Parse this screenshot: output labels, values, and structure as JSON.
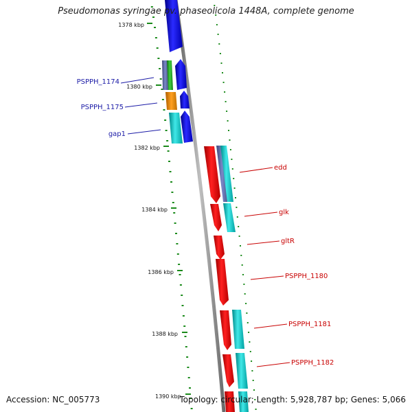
{
  "title": "Pseudomonas syringae pv. phaseolicola 1448A, complete genome",
  "accession": "Accession: NC_005773",
  "stats": "Topology: circular; Length: 5,928,787 bp; Genes: 5,066",
  "kbp_labels": [
    "1378 kbp",
    "1380 kbp",
    "1382 kbp",
    "1384 kbp",
    "1386 kbp",
    "1388 kbp",
    "1390 kbp"
  ],
  "genes_left": [
    "PSPPH_1174",
    "PSPPH_1175",
    "gap1"
  ],
  "genes_right": [
    "edd",
    "glk",
    "gltR",
    "PSPPH_1180",
    "PSPPH_1181",
    "PSPPH_1182"
  ],
  "colors": {
    "blue_gene": "#0a0aee",
    "red_gene": "#ee0a0a",
    "cyan_gene": "#11c8c8",
    "green_gene": "#22b022",
    "orange_gene": "#ee8a00",
    "slate_gene": "#6070a8",
    "backbone": "#8a8a8a",
    "tick": "#1a8a1a"
  }
}
